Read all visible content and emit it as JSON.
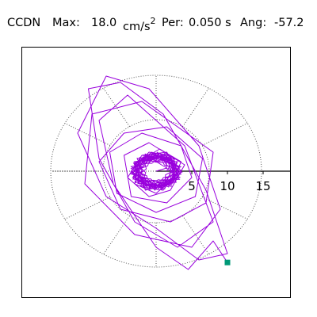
{
  "header": {
    "station": "CCDN",
    "max_label": "Max:",
    "max_value": "18.0",
    "max_unit": "cm/s",
    "max_exp": "2",
    "per_label": "Per:",
    "per_value": "0.050 s",
    "ang_label": "Ang:",
    "ang_value": "-57.2"
  },
  "chart_data": {
    "type": "polar-particle-motion",
    "radial_ticks": [
      "5",
      "10",
      "15"
    ],
    "radial_values": [
      5,
      10,
      15
    ],
    "grid": "dotted",
    "trace_color": "#9900dd",
    "marker_color": "#009977",
    "end_point": [
      10.0,
      -14.4
    ],
    "trace": [
      [
        0.0,
        0.0
      ],
      [
        1.5,
        0.5
      ],
      [
        -1.5,
        2.5
      ],
      [
        -2.8,
        -0.6
      ],
      [
        0.9,
        -2.7
      ],
      [
        2.5,
        0.8
      ],
      [
        -0.6,
        3.0
      ],
      [
        -3.0,
        1.0
      ],
      [
        -1.5,
        -3.0
      ],
      [
        2.2,
        -2.0
      ],
      [
        3.5,
        1.5
      ],
      [
        0.5,
        3.5
      ],
      [
        -2.5,
        1.5
      ],
      [
        -3.0,
        -2.0
      ],
      [
        0.0,
        -3.5
      ],
      [
        2.5,
        -1.0
      ],
      [
        2.0,
        2.5
      ],
      [
        -1.0,
        3.0
      ],
      [
        -3.5,
        0.0
      ],
      [
        -2.0,
        -2.5
      ],
      [
        1.0,
        -3.0
      ],
      [
        3.0,
        0.0
      ],
      [
        1.5,
        3.0
      ],
      [
        -2.0,
        2.5
      ],
      [
        -4.0,
        -1.0
      ],
      [
        -1.0,
        -4.0
      ],
      [
        2.0,
        -3.0
      ],
      [
        4.0,
        1.0
      ],
      [
        -1.0,
        4.5
      ],
      [
        -4.5,
        2.5
      ],
      [
        -3.5,
        -4.0
      ],
      [
        1.5,
        -5.0
      ],
      [
        5.0,
        -1.0
      ],
      [
        3.5,
        4.0
      ],
      [
        -2.0,
        6.0
      ],
      [
        -6.5,
        3.0
      ],
      [
        -5.5,
        -3.5
      ],
      [
        0.0,
        -6.5
      ],
      [
        5.5,
        -4.0
      ],
      [
        6.5,
        2.0
      ],
      [
        1.5,
        7.0
      ],
      [
        -4.5,
        6.0
      ],
      [
        -8.0,
        1.5
      ],
      [
        -5.0,
        -6.0
      ],
      [
        2.0,
        -8.0
      ],
      [
        7.0,
        -5.0
      ],
      [
        8.0,
        3.0
      ],
      [
        -2.0,
        11.0
      ],
      [
        -9.0,
        9.0
      ],
      [
        -10.0,
        -2.0
      ],
      [
        -3.0,
        -10.0
      ],
      [
        5.0,
        -12.0
      ],
      [
        9.0,
        -6.0
      ],
      [
        6.0,
        4.0
      ],
      [
        -1.0,
        13.0
      ],
      [
        -7.0,
        15.0
      ],
      [
        -11.0,
        6.0
      ],
      [
        -7.0,
        -4.0
      ],
      [
        0.0,
        -9.0
      ],
      [
        6.0,
        -14.0
      ],
      [
        10.0,
        -13.0
      ],
      [
        7.0,
        -3.0
      ],
      [
        1.0,
        9.0
      ],
      [
        -5.0,
        14.0
      ],
      [
        -9.5,
        13.0
      ],
      [
        -8.0,
        2.0
      ],
      [
        -3.0,
        -8.0
      ],
      [
        3.0,
        -12.0
      ],
      [
        8.0,
        -8.0
      ],
      [
        4.0,
        4.0
      ],
      [
        -4.0,
        12.0
      ],
      [
        -8.0,
        8.0
      ],
      [
        -6.0,
        -2.0
      ],
      [
        0.0,
        -12.0
      ],
      [
        4.5,
        -15.5
      ],
      [
        8.0,
        -11.0
      ],
      [
        10.0,
        -14.4
      ]
    ]
  }
}
